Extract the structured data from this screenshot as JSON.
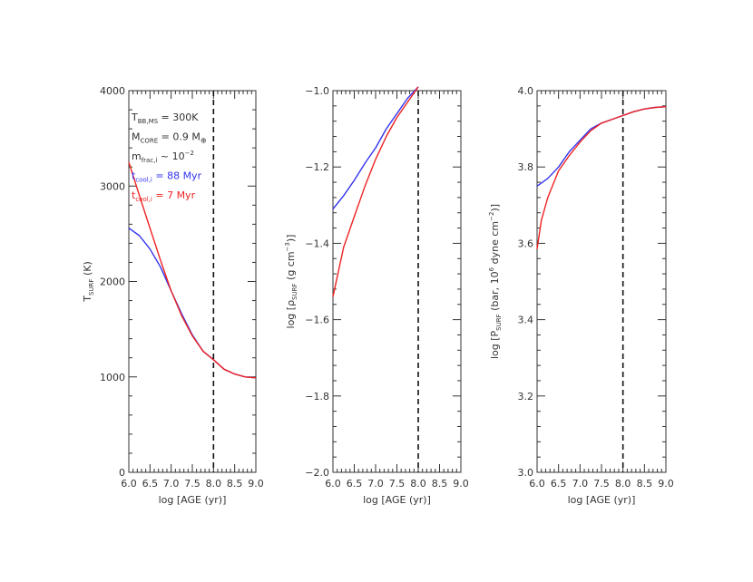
{
  "chart_data": [
    {
      "type": "line",
      "xlabel": "log [AGE (yr)]",
      "ylabel_main": "T",
      "ylabel_sub": "SURF",
      "ylabel_tail": " (K)",
      "xlim": [
        6.0,
        9.0
      ],
      "ylim": [
        0,
        4000
      ],
      "xticks": [
        "6.0",
        "6.5",
        "7.0",
        "7.5",
        "8.0",
        "8.5",
        "9.0"
      ],
      "yticks": [
        "0",
        "1000",
        "2000",
        "3000",
        "4000"
      ],
      "vline_x": 8.0,
      "series": [
        {
          "color": "#3333ee",
          "x": [
            6.0,
            6.25,
            6.5,
            6.75,
            7.0,
            7.25,
            7.5,
            7.75,
            8.0,
            8.25,
            8.5,
            8.75,
            9.0
          ],
          "y": [
            2560,
            2480,
            2340,
            2150,
            1900,
            1660,
            1440,
            1270,
            1180,
            1080,
            1030,
            1000,
            990
          ]
        },
        {
          "color": "#ee2222",
          "x": [
            6.0,
            6.25,
            6.5,
            6.75,
            7.0,
            7.25,
            7.5,
            7.75,
            8.0,
            8.25,
            8.5,
            8.75,
            9.0
          ],
          "y": [
            3250,
            2900,
            2560,
            2220,
            1900,
            1640,
            1430,
            1270,
            1180,
            1080,
            1030,
            1000,
            990
          ]
        }
      ],
      "annotations": [
        {
          "main": "T",
          "sub": "BB,MS",
          "tail": " = 300K",
          "color": "#333333"
        },
        {
          "main": "M",
          "sub": "CORE",
          "tail": " = 0.9 M",
          "tail_sub": "⊕",
          "color": "#333333"
        },
        {
          "main": "m",
          "sub": "frac,i",
          "tail": " ~ 10",
          "tail_sup": "−2",
          "color": "#333333"
        },
        {
          "main": "t",
          "sub": "cool,i",
          "tail": " = 88 Myr",
          "color": "#3333ee"
        },
        {
          "main": "t",
          "sub": "cool,i",
          "tail": " = 7 Myr",
          "color": "#ee2222"
        }
      ]
    },
    {
      "type": "line",
      "xlabel": "log [AGE (yr)]",
      "ylabel_main": "log [ρ",
      "ylabel_sub": "SURF",
      "ylabel_tail": " (g cm",
      "ylabel_sup": "−3",
      "ylabel_end": ")]",
      "xlim": [
        6.0,
        9.0
      ],
      "ylim": [
        -2.0,
        -1.0
      ],
      "xticks": [
        "6.0",
        "6.5",
        "7.0",
        "7.5",
        "8.0",
        "8.5",
        "9.0"
      ],
      "yticks": [
        "−2.0",
        "−1.8",
        "−1.6",
        "−1.4",
        "−1.2",
        "−1.0"
      ],
      "vline_x": 8.0,
      "series": [
        {
          "color": "#3333ee",
          "x": [
            6.0,
            6.25,
            6.5,
            6.75,
            7.0,
            7.25,
            7.5,
            7.75,
            8.0
          ],
          "y": [
            -1.31,
            -1.275,
            -1.235,
            -1.19,
            -1.15,
            -1.1,
            -1.06,
            -1.02,
            -0.99
          ]
        },
        {
          "color": "#ee2222",
          "x": [
            6.0,
            6.25,
            6.5,
            6.75,
            7.0,
            7.25,
            7.5,
            7.75,
            8.0
          ],
          "y": [
            -1.54,
            -1.41,
            -1.33,
            -1.25,
            -1.18,
            -1.12,
            -1.07,
            -1.03,
            -0.99
          ]
        }
      ]
    },
    {
      "type": "line",
      "xlabel": "log [AGE (yr)]",
      "ylabel_main": "log [P",
      "ylabel_sub": "SURF",
      "ylabel_tail": " (bar, 10",
      "ylabel_sup": "6",
      "ylabel_end": " dyne cm",
      "ylabel_sup2": "−2",
      "ylabel_end2": ")]",
      "xlim": [
        6.0,
        9.0
      ],
      "ylim": [
        3.0,
        4.0
      ],
      "xticks": [
        "6.0",
        "6.5",
        "7.0",
        "7.5",
        "8.0",
        "8.5",
        "9.0"
      ],
      "yticks": [
        "3.0",
        "3.2",
        "3.4",
        "3.6",
        "3.8",
        "4.0"
      ],
      "vline_x": 8.0,
      "series": [
        {
          "color": "#3333ee",
          "x": [
            6.0,
            6.25,
            6.5,
            6.75,
            7.0,
            7.25,
            7.5,
            7.75,
            8.0,
            8.25,
            8.5,
            8.75,
            9.0
          ],
          "y": [
            3.75,
            3.77,
            3.8,
            3.84,
            3.87,
            3.9,
            3.915,
            3.925,
            3.935,
            3.945,
            3.952,
            3.956,
            3.958
          ]
        },
        {
          "color": "#ee2222",
          "x": [
            6.0,
            6.1,
            6.25,
            6.5,
            6.75,
            7.0,
            7.25,
            7.5,
            7.75,
            8.0,
            8.25,
            8.5,
            8.75,
            9.0
          ],
          "y": [
            3.585,
            3.66,
            3.72,
            3.79,
            3.83,
            3.865,
            3.895,
            3.915,
            3.925,
            3.935,
            3.945,
            3.952,
            3.956,
            3.958
          ]
        }
      ]
    }
  ]
}
